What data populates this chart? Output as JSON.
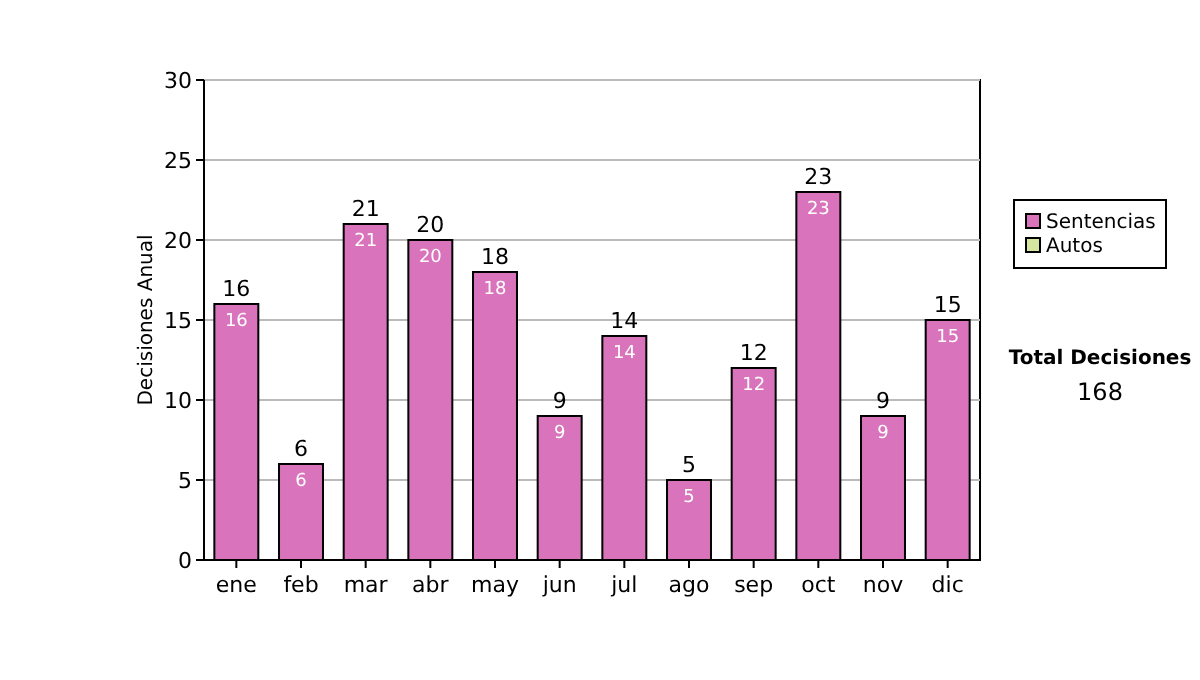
{
  "chart_data": {
    "type": "bar",
    "ylabel": "Decisiones Anual",
    "categories": [
      "ene",
      "feb",
      "mar",
      "abr",
      "may",
      "jun",
      "jul",
      "ago",
      "sep",
      "oct",
      "nov",
      "dic"
    ],
    "series": [
      {
        "name": "Sentencias",
        "color": "#d973bb",
        "values": [
          16,
          6,
          21,
          20,
          18,
          9,
          14,
          5,
          12,
          23,
          9,
          15
        ]
      },
      {
        "name": "Autos",
        "color": "#d4e6a0",
        "values": [
          null,
          null,
          null,
          null,
          null,
          null,
          null,
          null,
          null,
          null,
          null,
          null
        ]
      }
    ],
    "stacked": true,
    "data_labels": true,
    "totals": [
      "16",
      "6",
      "21",
      "20",
      "18",
      "9",
      "14",
      "5",
      "12",
      "23",
      "9",
      "15"
    ],
    "ylim": [
      0,
      30
    ],
    "yticks": [
      0,
      5,
      10,
      15,
      20,
      25,
      30
    ],
    "grid": "y",
    "legend": "right",
    "annotations": [
      "Total Decisiones",
      "168"
    ]
  }
}
